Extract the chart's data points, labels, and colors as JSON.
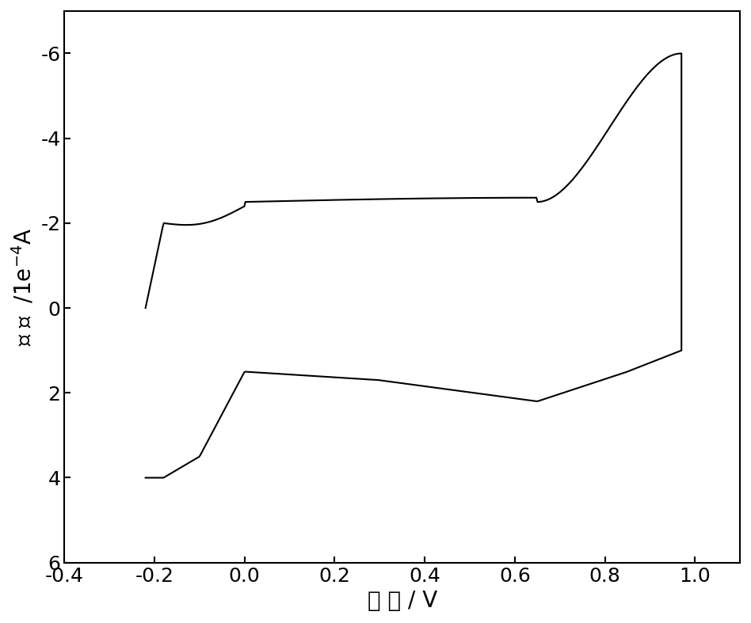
{
  "xlabel": "电 位 / V",
  "ylabel": "电 流  /1e⁻⁴A",
  "xlim": [
    -0.4,
    1.1
  ],
  "ylim": [
    6,
    -7
  ],
  "xticks": [
    -0.4,
    -0.2,
    0.0,
    0.2,
    0.4,
    0.6,
    0.8,
    1.0
  ],
  "yticks": [
    -6,
    -4,
    -2,
    0,
    2,
    4,
    6
  ],
  "line_color": "#000000",
  "line_width": 1.5,
  "background_color": "#ffffff",
  "xlabel_fontsize": 20,
  "ylabel_fontsize": 20,
  "tick_fontsize": 18
}
